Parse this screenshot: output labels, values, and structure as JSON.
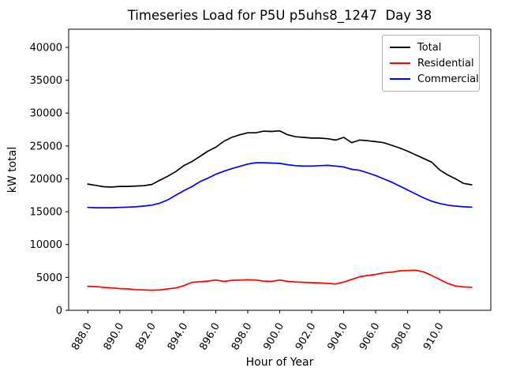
{
  "chart_data": {
    "type": "line",
    "title": "Timeseries Load for P5U p5uhs8_1247  Day 38",
    "xlabel": "Hour of Year",
    "ylabel": "kW total",
    "grid": false,
    "legend_position": "upper right",
    "xlim": [
      886.8,
      913.2
    ],
    "ylim": [
      0,
      42760
    ],
    "xticks": [
      888,
      890,
      892,
      894,
      896,
      898,
      900,
      902,
      904,
      906,
      908,
      910
    ],
    "xtick_labels": [
      "888.0",
      "890.0",
      "892.0",
      "894.0",
      "896.0",
      "898.0",
      "900.0",
      "902.0",
      "904.0",
      "906.0",
      "908.0",
      "910.0"
    ],
    "yticks": [
      0,
      5000,
      10000,
      15000,
      20000,
      25000,
      30000,
      35000,
      40000
    ],
    "ytick_labels": [
      "0",
      "5000",
      "10000",
      "15000",
      "20000",
      "25000",
      "30000",
      "35000",
      "40000"
    ],
    "x": [
      888.0,
      888.5,
      889.0,
      889.5,
      890.0,
      890.5,
      891.0,
      891.5,
      892.0,
      892.5,
      893.0,
      893.5,
      894.0,
      894.5,
      895.0,
      895.5,
      896.0,
      896.5,
      897.0,
      897.5,
      898.0,
      898.5,
      899.0,
      899.5,
      900.0,
      900.5,
      901.0,
      901.5,
      902.0,
      902.5,
      903.0,
      903.5,
      904.0,
      904.5,
      905.0,
      905.5,
      906.0,
      906.5,
      907.0,
      907.5,
      908.0,
      908.5,
      909.0,
      909.5,
      910.0,
      910.5,
      911.0,
      911.5,
      912.0
    ],
    "series": [
      {
        "name": "Total",
        "color": "#000000",
        "values": [
          19200,
          19000,
          18800,
          18750,
          18850,
          18850,
          18900,
          18950,
          19150,
          19800,
          20400,
          21100,
          22000,
          22600,
          23400,
          24200,
          24800,
          25700,
          26300,
          26700,
          27000,
          27000,
          27250,
          27200,
          27300,
          26700,
          26400,
          26300,
          26200,
          26200,
          26100,
          25900,
          26300,
          25500,
          25900,
          25800,
          25650,
          25500,
          25100,
          24700,
          24200,
          23650,
          23100,
          22550,
          21350,
          20600,
          20000,
          19300,
          19100
        ]
      },
      {
        "name": "Residential",
        "color": "#ff0000",
        "values": [
          3650,
          3600,
          3500,
          3400,
          3300,
          3250,
          3150,
          3100,
          3050,
          3100,
          3250,
          3400,
          3750,
          4250,
          4350,
          4450,
          4600,
          4400,
          4550,
          4600,
          4650,
          4600,
          4450,
          4400,
          4600,
          4400,
          4300,
          4250,
          4200,
          4150,
          4100,
          4000,
          4300,
          4700,
          5100,
          5300,
          5450,
          5700,
          5800,
          6000,
          6050,
          6100,
          5850,
          5300,
          4700,
          4100,
          3700,
          3550,
          3500
        ]
      },
      {
        "name": "Commercial",
        "color": "#0000ff",
        "values": [
          15650,
          15600,
          15600,
          15600,
          15650,
          15700,
          15750,
          15850,
          16000,
          16300,
          16800,
          17500,
          18200,
          18800,
          19550,
          20100,
          20700,
          21150,
          21550,
          21900,
          22250,
          22450,
          22450,
          22400,
          22350,
          22150,
          22000,
          21950,
          21950,
          22000,
          22050,
          21950,
          21800,
          21450,
          21300,
          20900,
          20500,
          20000,
          19500,
          18900,
          18300,
          17700,
          17100,
          16600,
          16250,
          16000,
          15850,
          15750,
          15700
        ]
      }
    ]
  }
}
